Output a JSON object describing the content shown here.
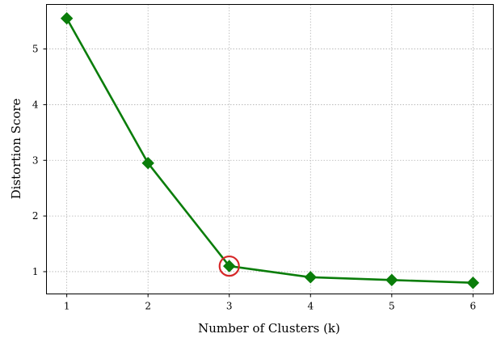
{
  "chart_data": {
    "type": "line",
    "xlabel": "Number of Clusters (k)",
    "ylabel": "Distortion Score",
    "x": [
      1,
      2,
      3,
      4,
      5,
      6
    ],
    "xticks": [
      "1",
      "2",
      "3",
      "4",
      "5",
      "6"
    ],
    "yticks": [
      "1",
      "2",
      "3",
      "4",
      "5"
    ],
    "xlim": [
      0.75,
      6.25
    ],
    "ylim": [
      0.6,
      5.8
    ],
    "grid": true,
    "series": [
      {
        "values": [
          5.55,
          2.95,
          1.1,
          0.9,
          0.85,
          0.8
        ],
        "marker": "diamond",
        "color": "#0a7d0a"
      }
    ],
    "highlight": {
      "x": 3,
      "y": 1.1,
      "shape": "circle",
      "color": "#d62728"
    }
  }
}
